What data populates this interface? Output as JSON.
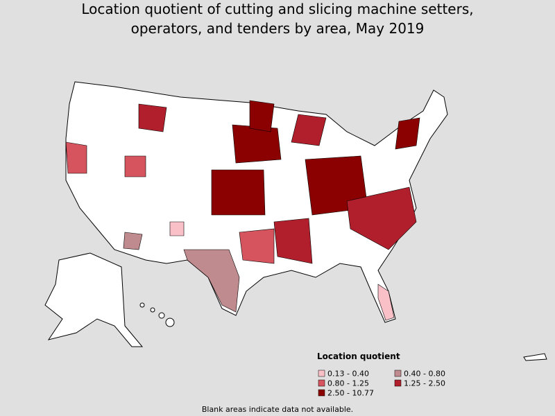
{
  "title_lines": [
    "Location quotient of cutting and slicing machine setters,",
    "operators, and tenders by area, May 2019"
  ],
  "legend": {
    "title": "Location quotient",
    "items": [
      {
        "label": "0.13 - 0.40",
        "color": "#f9c0c8"
      },
      {
        "label": "0.40 - 0.80",
        "color": "#c08b8e"
      },
      {
        "label": "0.80 - 1.25",
        "color": "#d6545e"
      },
      {
        "label": "1.25 - 2.50",
        "color": "#b01f2b"
      },
      {
        "label": "2.50 - 10.77",
        "color": "#8b0000"
      }
    ]
  },
  "footnote": "Blank areas indicate data not available."
}
